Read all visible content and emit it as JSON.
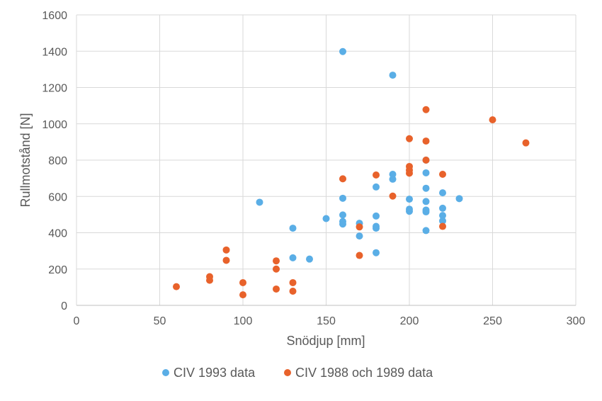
{
  "chart_data": {
    "type": "scatter",
    "title": "",
    "xlabel": "Snödjup [mm]",
    "ylabel": "Rullmotstånd [N]",
    "xlim": [
      0,
      300
    ],
    "ylim": [
      0,
      1600
    ],
    "xticks": [
      0,
      50,
      100,
      150,
      200,
      250,
      300
    ],
    "yticks": [
      0,
      200,
      400,
      600,
      800,
      1000,
      1200,
      1400,
      1600
    ],
    "grid": true,
    "legend_position": "bottom",
    "series": [
      {
        "name": "CIV 1993 data",
        "color": "#5aaee6",
        "points": [
          [
            110,
            568
          ],
          [
            130,
            425
          ],
          [
            130,
            262
          ],
          [
            140,
            255
          ],
          [
            150,
            478
          ],
          [
            160,
            1398
          ],
          [
            160,
            590
          ],
          [
            160,
            498
          ],
          [
            160,
            462
          ],
          [
            160,
            448
          ],
          [
            170,
            452
          ],
          [
            170,
            382
          ],
          [
            180,
            652
          ],
          [
            180,
            492
          ],
          [
            180,
            435
          ],
          [
            180,
            425
          ],
          [
            180,
            290
          ],
          [
            190,
            1268
          ],
          [
            190,
            722
          ],
          [
            190,
            695
          ],
          [
            200,
            585
          ],
          [
            200,
            530
          ],
          [
            200,
            518
          ],
          [
            210,
            800
          ],
          [
            210,
            730
          ],
          [
            210,
            645
          ],
          [
            210,
            572
          ],
          [
            210,
            525
          ],
          [
            210,
            515
          ],
          [
            210,
            412
          ],
          [
            220,
            620
          ],
          [
            220,
            535
          ],
          [
            220,
            495
          ],
          [
            220,
            465
          ],
          [
            230,
            588
          ]
        ]
      },
      {
        "name": "CIV 1988 och 1989 data",
        "color": "#e8622b",
        "points": [
          [
            60,
            103
          ],
          [
            80,
            158
          ],
          [
            80,
            138
          ],
          [
            90,
            305
          ],
          [
            90,
            248
          ],
          [
            100,
            125
          ],
          [
            100,
            58
          ],
          [
            120,
            245
          ],
          [
            120,
            200
          ],
          [
            120,
            90
          ],
          [
            130,
            125
          ],
          [
            130,
            78
          ],
          [
            160,
            697
          ],
          [
            170,
            432
          ],
          [
            170,
            275
          ],
          [
            180,
            718
          ],
          [
            190,
            602
          ],
          [
            200,
            918
          ],
          [
            200,
            765
          ],
          [
            200,
            745
          ],
          [
            200,
            728
          ],
          [
            210,
            1078
          ],
          [
            210,
            905
          ],
          [
            210,
            800
          ],
          [
            220,
            722
          ],
          [
            220,
            435
          ],
          [
            250,
            1022
          ],
          [
            270,
            895
          ]
        ]
      }
    ]
  }
}
